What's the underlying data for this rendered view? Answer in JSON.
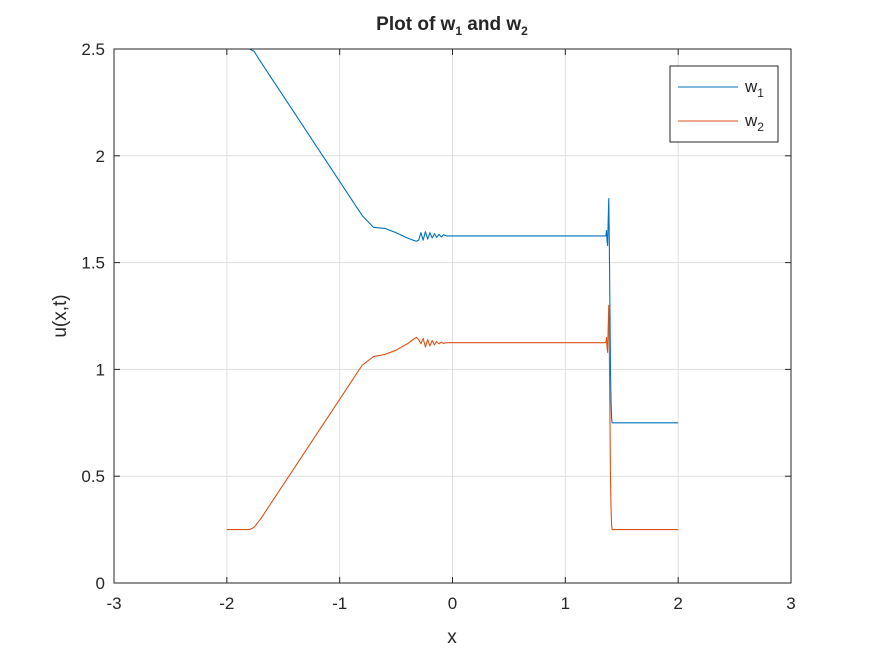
{
  "chart_data": {
    "type": "line",
    "title_prefix": "Plot of w",
    "title_sub1": "1",
    "title_mid": " and w",
    "title_sub2": "2",
    "xlabel": "x",
    "ylabel": "u(x,t)",
    "xlim": [
      -3,
      3
    ],
    "ylim": [
      0,
      2.5
    ],
    "xticks": [
      -3,
      -2,
      -1,
      0,
      1,
      2,
      3
    ],
    "xtick_labels": [
      "-3",
      "-2",
      "-1",
      "0",
      "1",
      "2",
      "3"
    ],
    "yticks": [
      0,
      0.5,
      1,
      1.5,
      2,
      2.5
    ],
    "ytick_labels": [
      "0",
      "0.5",
      "1",
      "1.5",
      "2",
      "2.5"
    ],
    "grid": true,
    "legend_position": "top-right",
    "series": [
      {
        "name_base": "w",
        "name_sub": "1",
        "color": "#0072BD",
        "x": [
          -2.0,
          -1.85,
          -1.8,
          -1.76,
          -1.7,
          -1.6,
          -1.5,
          -1.4,
          -1.3,
          -1.2,
          -1.1,
          -1.0,
          -0.9,
          -0.8,
          -0.7,
          -0.6,
          -0.5,
          -0.4,
          -0.35,
          -0.32,
          -0.3,
          -0.28,
          -0.26,
          -0.24,
          -0.22,
          -0.2,
          -0.18,
          -0.16,
          -0.14,
          -0.12,
          -0.1,
          -0.08,
          -0.05,
          0.0,
          0.5,
          1.0,
          1.3,
          1.34,
          1.36,
          1.365,
          1.37,
          1.375,
          1.38,
          1.385,
          1.39,
          1.395,
          1.4,
          1.405,
          1.41,
          1.415,
          1.42,
          1.43,
          1.45,
          1.6,
          2.0
        ],
        "y": [
          2.5,
          2.5,
          2.5,
          2.49,
          2.44,
          2.36,
          2.28,
          2.2,
          2.12,
          2.04,
          1.96,
          1.88,
          1.8,
          1.72,
          1.665,
          1.66,
          1.64,
          1.615,
          1.605,
          1.6,
          1.605,
          1.64,
          1.605,
          1.645,
          1.61,
          1.64,
          1.615,
          1.635,
          1.618,
          1.632,
          1.62,
          1.63,
          1.625,
          1.625,
          1.625,
          1.625,
          1.625,
          1.625,
          1.625,
          1.65,
          1.6,
          1.58,
          1.7,
          1.8,
          1.58,
          1.3,
          1.0,
          0.85,
          0.77,
          0.75,
          0.75,
          0.75,
          0.75,
          0.75,
          0.75
        ]
      },
      {
        "name_base": "w",
        "name_sub": "2",
        "color": "#D95319",
        "x": [
          -2.0,
          -1.85,
          -1.8,
          -1.76,
          -1.7,
          -1.6,
          -1.5,
          -1.4,
          -1.3,
          -1.2,
          -1.1,
          -1.0,
          -0.9,
          -0.8,
          -0.7,
          -0.6,
          -0.5,
          -0.4,
          -0.35,
          -0.32,
          -0.3,
          -0.28,
          -0.26,
          -0.24,
          -0.22,
          -0.2,
          -0.18,
          -0.16,
          -0.14,
          -0.12,
          -0.1,
          -0.08,
          -0.05,
          0.0,
          0.5,
          1.0,
          1.3,
          1.34,
          1.36,
          1.365,
          1.37,
          1.375,
          1.38,
          1.385,
          1.39,
          1.395,
          1.4,
          1.405,
          1.41,
          1.415,
          1.42,
          1.43,
          1.45,
          1.6,
          2.0
        ],
        "y": [
          0.25,
          0.25,
          0.25,
          0.26,
          0.3,
          0.38,
          0.46,
          0.54,
          0.62,
          0.7,
          0.78,
          0.86,
          0.94,
          1.02,
          1.06,
          1.07,
          1.09,
          1.12,
          1.14,
          1.15,
          1.14,
          1.12,
          1.145,
          1.105,
          1.14,
          1.11,
          1.135,
          1.115,
          1.13,
          1.12,
          1.128,
          1.122,
          1.125,
          1.125,
          1.125,
          1.125,
          1.125,
          1.125,
          1.125,
          1.15,
          1.1,
          1.08,
          1.2,
          1.3,
          1.1,
          0.8,
          0.5,
          0.35,
          0.27,
          0.25,
          0.25,
          0.25,
          0.25,
          0.25,
          0.25
        ]
      }
    ]
  }
}
